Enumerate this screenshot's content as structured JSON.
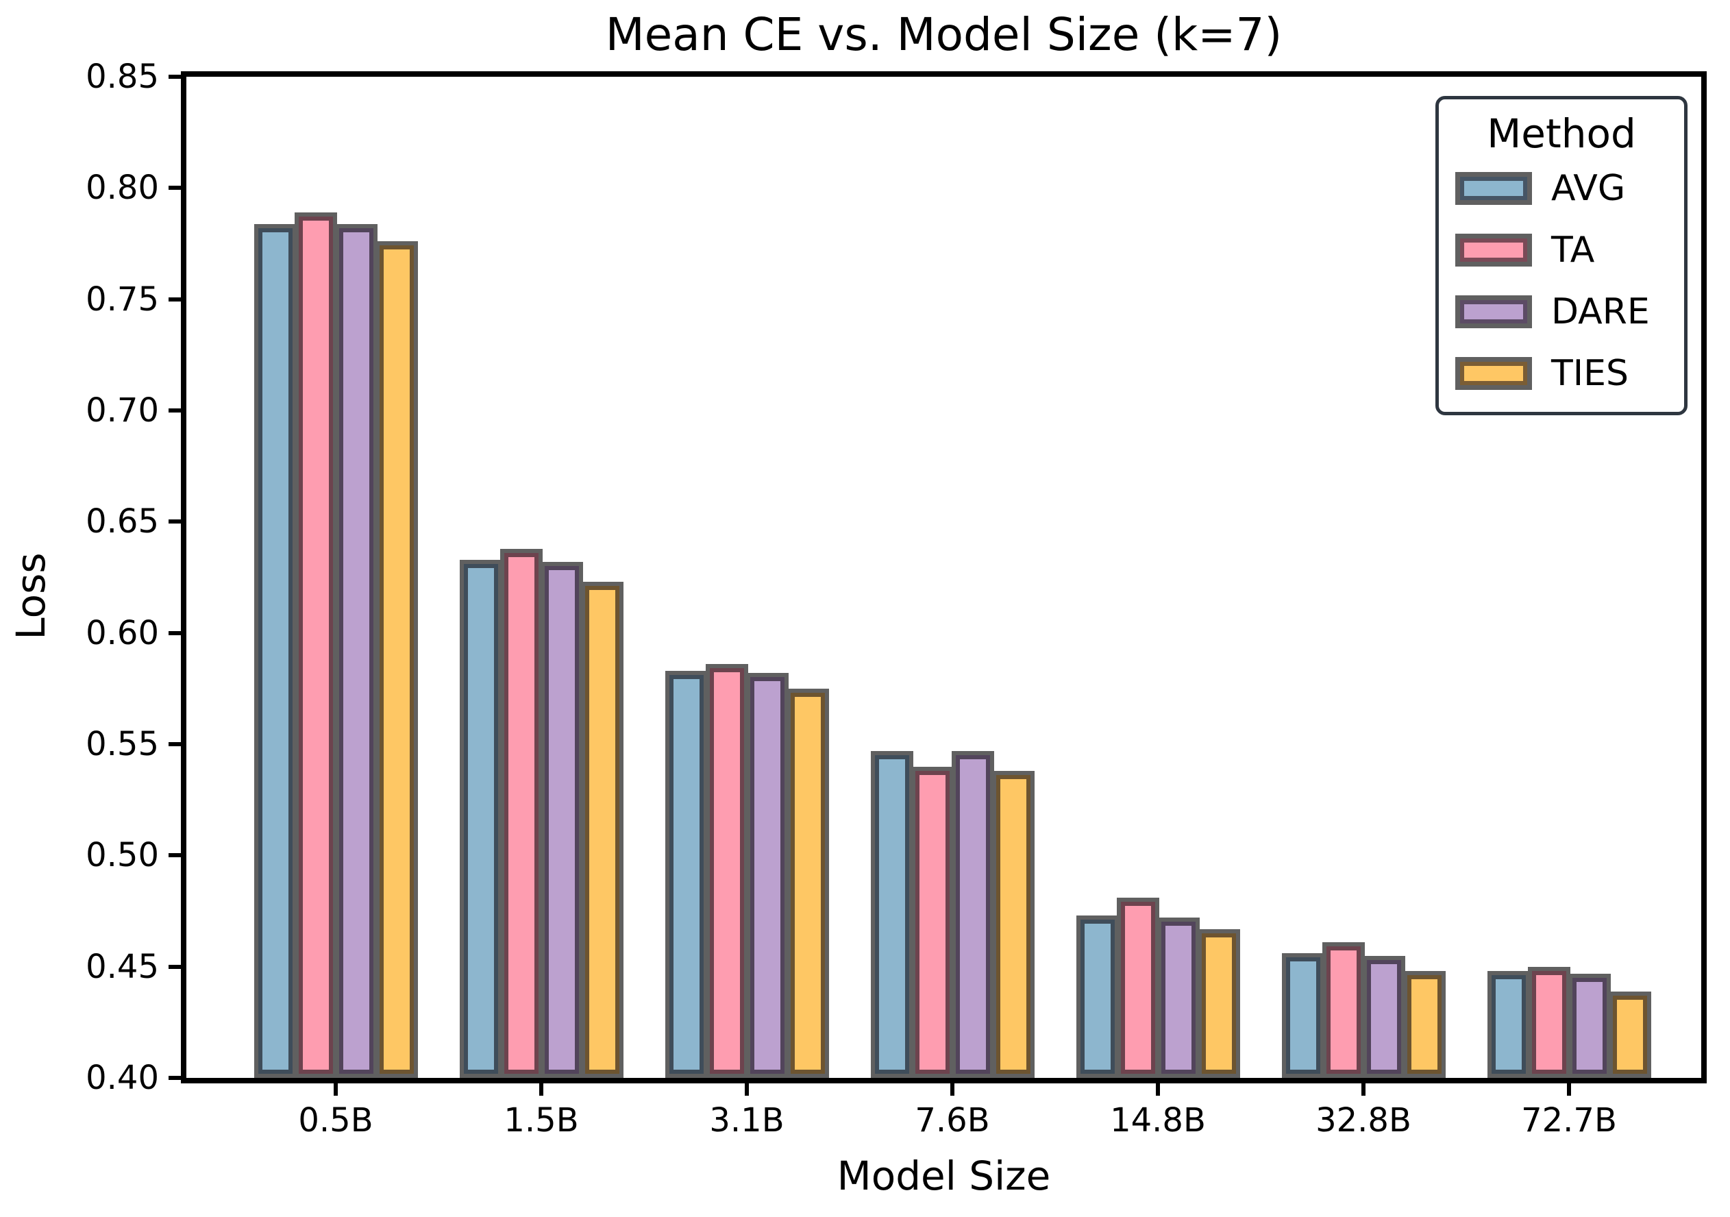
{
  "chart_data": {
    "type": "bar",
    "title": "Mean CE vs. Model Size (k=7)",
    "xlabel": "Model Size",
    "ylabel": "Loss",
    "categories": [
      "0.5B",
      "1.5B",
      "3.1B",
      "7.6B",
      "14.8B",
      "32.8B",
      "72.7B"
    ],
    "series": [
      {
        "name": "AVG",
        "color": "#8db6ce",
        "values": [
          0.783,
          0.632,
          0.582,
          0.546,
          0.472,
          0.455,
          0.447
        ]
      },
      {
        "name": "TA",
        "color": "#fe9db0",
        "values": [
          0.788,
          0.637,
          0.585,
          0.539,
          0.48,
          0.46,
          0.449
        ]
      },
      {
        "name": "DARE",
        "color": "#bca1cf",
        "values": [
          0.783,
          0.631,
          0.581,
          0.546,
          0.471,
          0.454,
          0.446
        ]
      },
      {
        "name": "TIES",
        "color": "#fec764",
        "values": [
          0.775,
          0.622,
          0.574,
          0.537,
          0.466,
          0.447,
          0.438
        ]
      }
    ],
    "ylim": [
      0.4,
      0.85
    ],
    "yticks": [
      "0.85",
      "0.80",
      "0.75",
      "0.70",
      "0.65",
      "0.60",
      "0.55",
      "0.50",
      "0.45",
      "0.40"
    ],
    "grid": false,
    "legend": {
      "title": "Method",
      "position": "upper-right"
    },
    "colors": {
      "bar_edge": "#606060",
      "frame": "#000000",
      "legend_border": "#2e3640",
      "background": "#ffffff"
    }
  }
}
